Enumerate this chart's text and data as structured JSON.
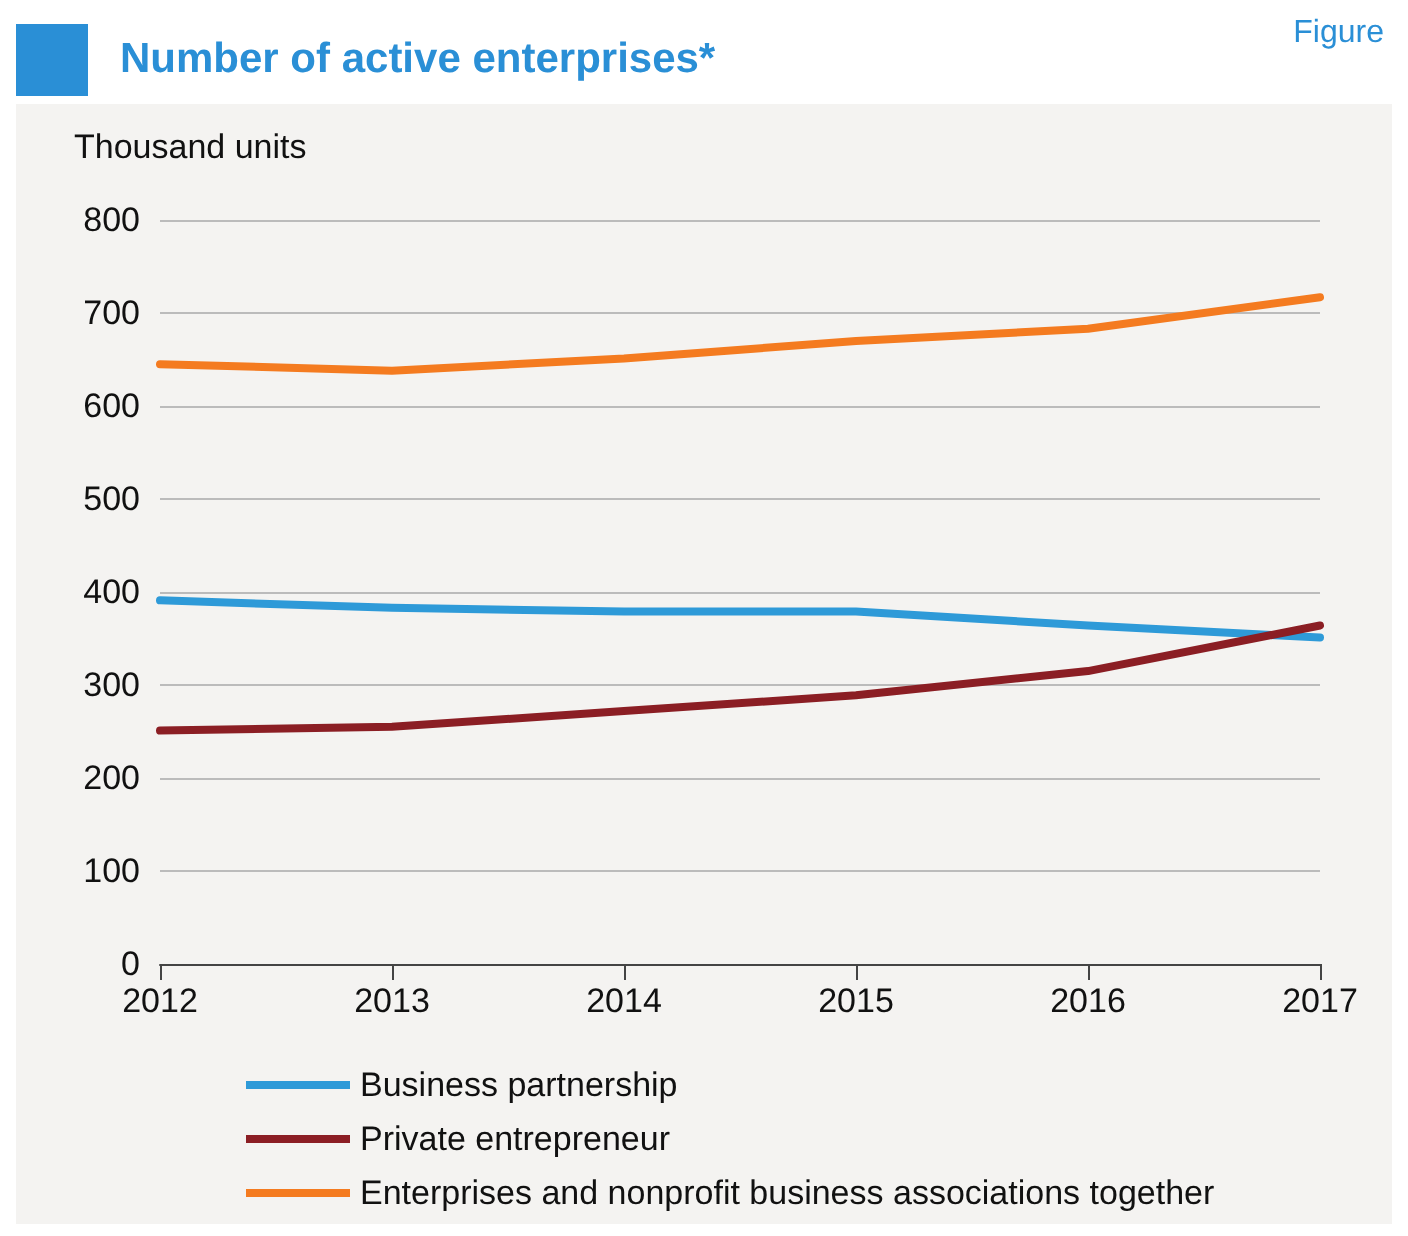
{
  "chart_data": {
    "type": "line",
    "title": "Number of active enterprises*",
    "ylabel": "Thousand units",
    "annotations": [
      "Figure"
    ],
    "x": [
      2012,
      2013,
      2014,
      2015,
      2016,
      2017
    ],
    "xlim": [
      2012,
      2017
    ],
    "xticks": [
      2012,
      2013,
      2014,
      2015,
      2016,
      2017
    ],
    "ylim": [
      0,
      800
    ],
    "yticks": [
      0,
      100,
      200,
      300,
      400,
      500,
      600,
      700,
      800
    ],
    "grid": "y",
    "legend": "bottom",
    "marker": "none",
    "line_style": "solid",
    "series": [
      {
        "name": "Business partnership",
        "color": "#2e9ad8",
        "values": [
          391,
          383,
          379,
          379,
          364,
          351
        ]
      },
      {
        "name": "Private entrepreneur",
        "color": "#8b1e24",
        "values": [
          251,
          255,
          272,
          289,
          315,
          364
        ]
      },
      {
        "name": "Enterprises and nonprofit business associations together",
        "color": "#f47b20",
        "values": [
          645,
          638,
          651,
          670,
          683,
          717
        ]
      }
    ]
  }
}
